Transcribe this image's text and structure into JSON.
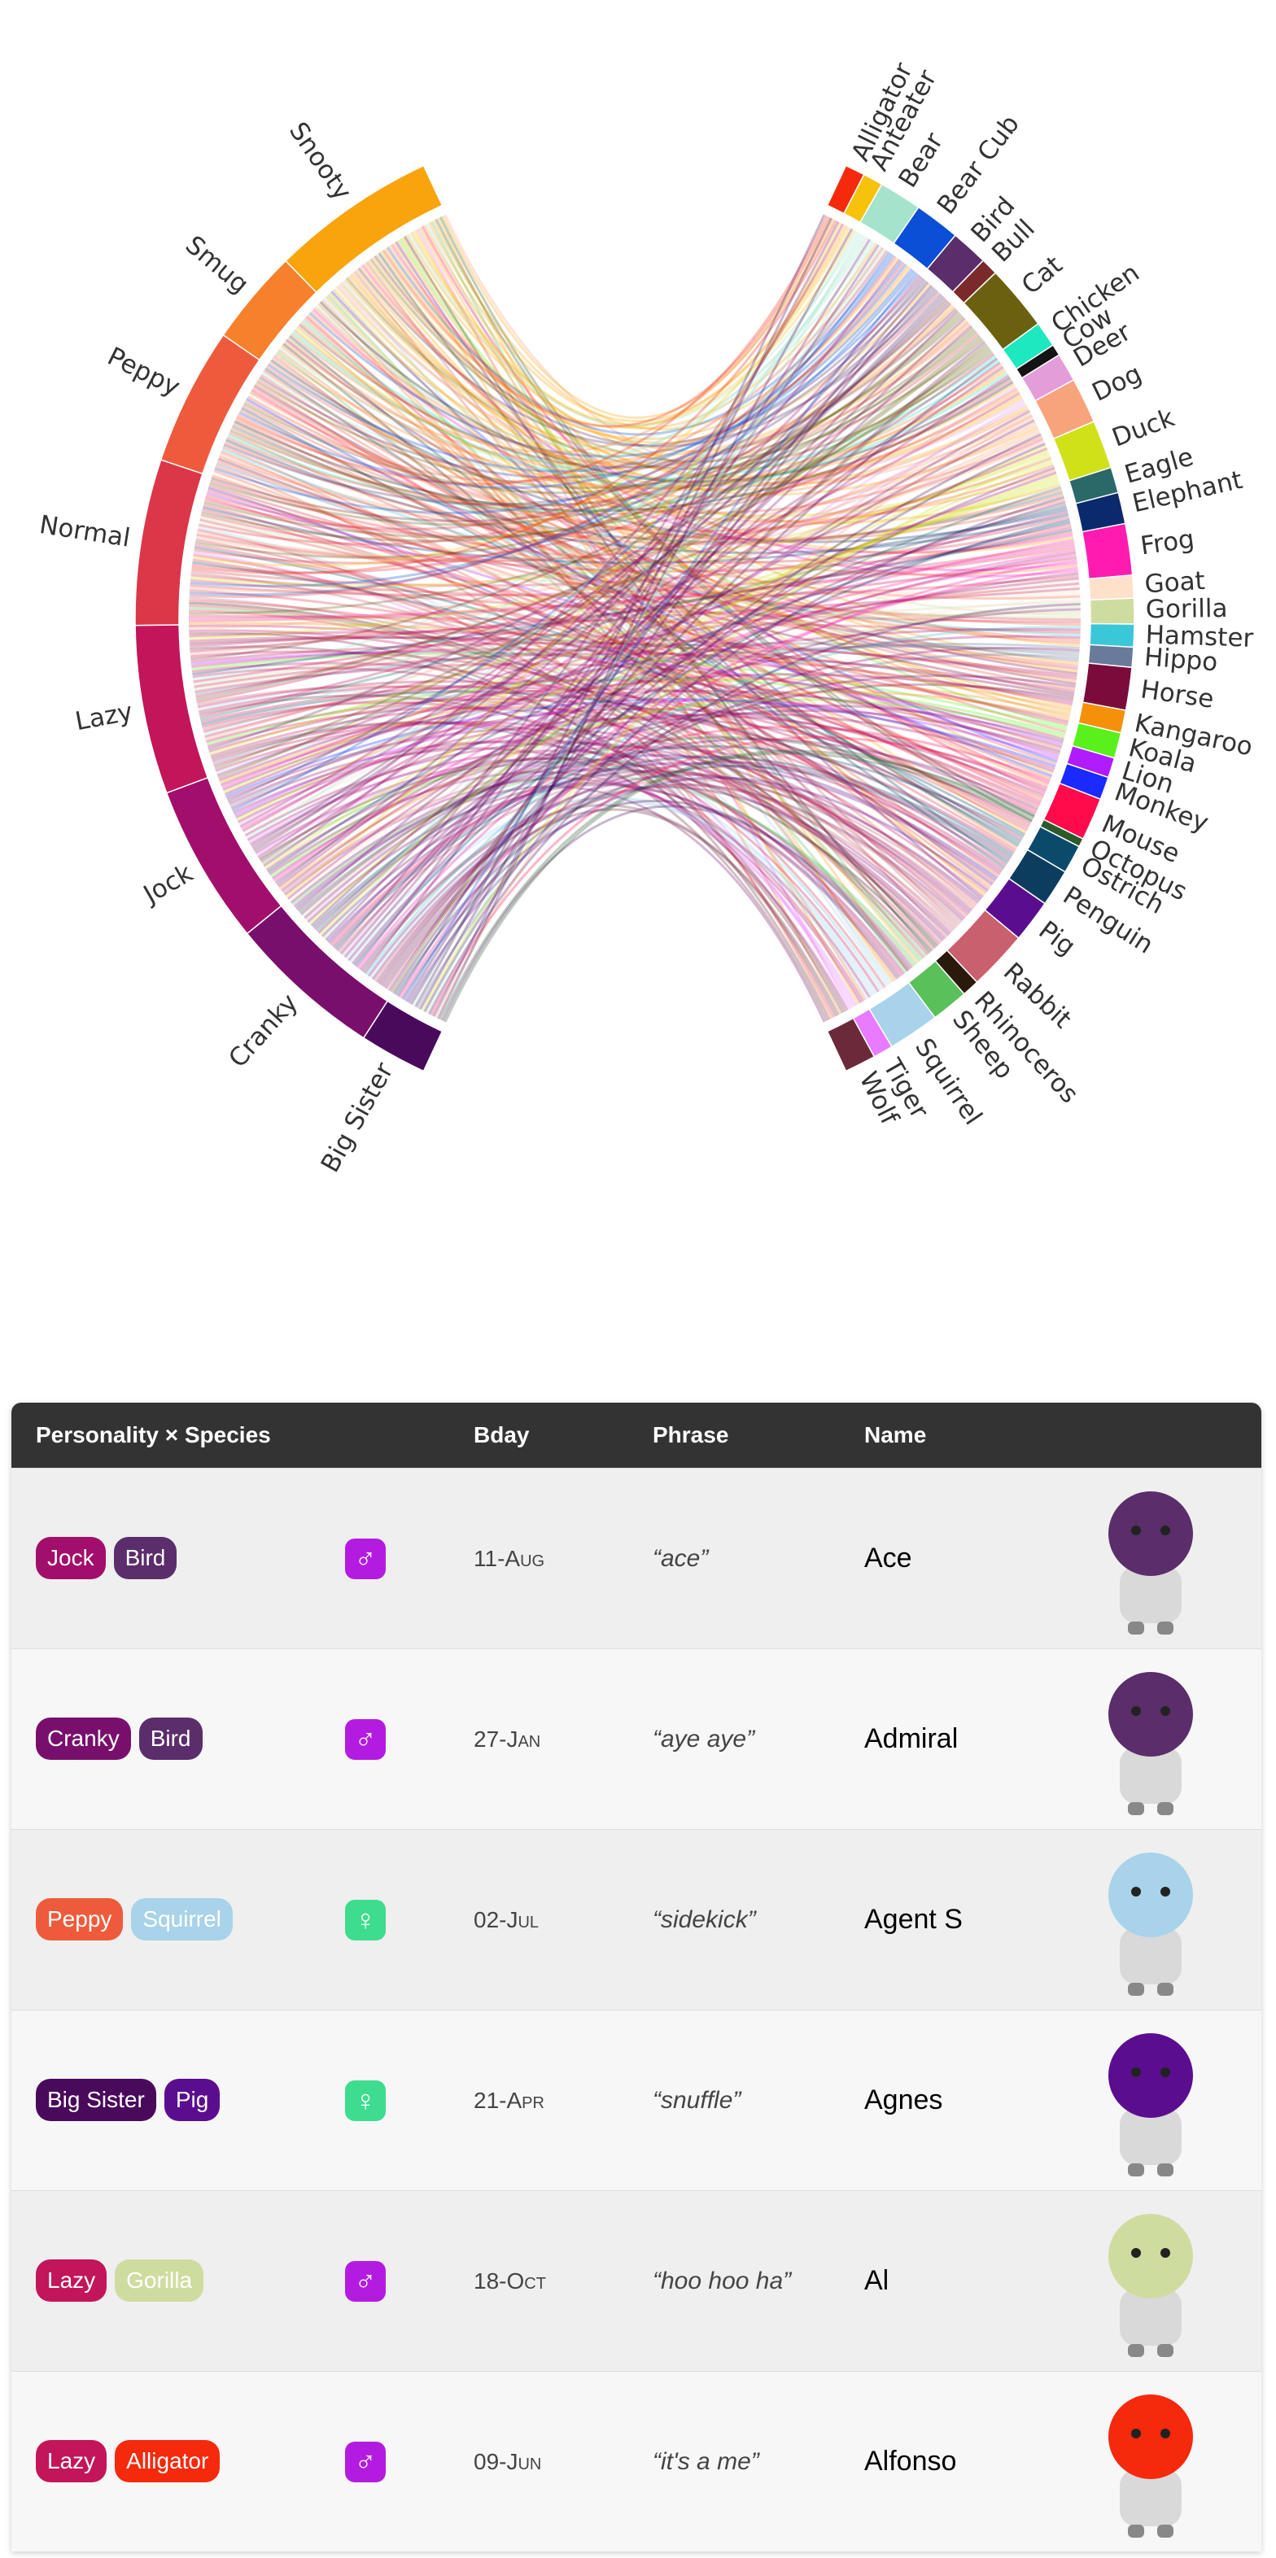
{
  "chord": {
    "left": {
      "groups": [
        {
          "name": "Snooty",
          "size": 59,
          "color": "#f9a40c"
        },
        {
          "name": "Smug",
          "size": 34,
          "color": "#f7802c"
        },
        {
          "name": "Peppy",
          "size": 49,
          "color": "#ee5b3c"
        },
        {
          "name": "Normal",
          "size": 59,
          "color": "#dc3649"
        },
        {
          "name": "Lazy",
          "size": 60,
          "color": "#c3155a"
        },
        {
          "name": "Jock",
          "size": 57,
          "color": "#a20e6b"
        },
        {
          "name": "Cranky",
          "size": 55,
          "color": "#790f6c"
        },
        {
          "name": "Big Sister",
          "size": 24,
          "color": "#4a0a5c"
        }
      ]
    },
    "right": {
      "groups": [
        {
          "name": "Alligator",
          "size": 7,
          "color": "#f5290b"
        },
        {
          "name": "Anteater",
          "size": 7,
          "color": "#f7c20c"
        },
        {
          "name": "Bear",
          "size": 15,
          "color": "#a6e3cc"
        },
        {
          "name": "Bear Cub",
          "size": 16,
          "color": "#0a4fd6"
        },
        {
          "name": "Bird",
          "size": 13,
          "color": "#5b2d6b"
        },
        {
          "name": "Bull",
          "size": 6,
          "color": "#7a2a2a"
        },
        {
          "name": "Cat",
          "size": 23,
          "color": "#6b6010"
        },
        {
          "name": "Chicken",
          "size": 9,
          "color": "#1ee8c0"
        },
        {
          "name": "Cow",
          "size": 4,
          "color": "#141414"
        },
        {
          "name": "Deer",
          "size": 10,
          "color": "#e39dd9"
        },
        {
          "name": "Dog",
          "size": 16,
          "color": "#f7a37c"
        },
        {
          "name": "Duck",
          "size": 17,
          "color": "#d0e11a"
        },
        {
          "name": "Eagle",
          "size": 9,
          "color": "#2b6868"
        },
        {
          "name": "Elephant",
          "size": 11,
          "color": "#0b2a6e"
        },
        {
          "name": "Frog",
          "size": 18,
          "color": "#ff1bb0"
        },
        {
          "name": "Goat",
          "size": 8,
          "color": "#ffe0c8"
        },
        {
          "name": "Gorilla",
          "size": 9,
          "color": "#cfdca0"
        },
        {
          "name": "Hamster",
          "size": 8,
          "color": "#3ac7d8"
        },
        {
          "name": "Hippo",
          "size": 7,
          "color": "#6a7a9a"
        },
        {
          "name": "Horse",
          "size": 15,
          "color": "#7a0b3b"
        },
        {
          "name": "Kangaroo",
          "size": 8,
          "color": "#f5900b"
        },
        {
          "name": "Koala",
          "size": 9,
          "color": "#5af01b"
        },
        {
          "name": "Lion",
          "size": 7,
          "color": "#b01bff"
        },
        {
          "name": "Monkey",
          "size": 8,
          "color": "#1b2bff"
        },
        {
          "name": "Mouse",
          "size": 15,
          "color": "#ff0b4b"
        },
        {
          "name": "Octopus",
          "size": 3,
          "color": "#2b5a2b"
        },
        {
          "name": "Ostrich",
          "size": 10,
          "color": "#0b4a6a"
        },
        {
          "name": "Penguin",
          "size": 13,
          "color": "#0d3d5e"
        },
        {
          "name": "Pig",
          "size": 15,
          "color": "#5b0d8f"
        },
        {
          "name": "Rabbit",
          "size": 21,
          "color": "#c8606e"
        },
        {
          "name": "Rhinoceros",
          "size": 6,
          "color": "#2b1a0b"
        },
        {
          "name": "Sheep",
          "size": 13,
          "color": "#5ac05a"
        },
        {
          "name": "Squirrel",
          "size": 18,
          "color": "#a8d3ea"
        },
        {
          "name": "Tiger",
          "size": 7,
          "color": "#e87bff"
        },
        {
          "name": "Wolf",
          "size": 11,
          "color": "#6a2a3a"
        }
      ]
    }
  },
  "table": {
    "headers": [
      "Personality × Species",
      "Bday",
      "Phrase",
      "Name"
    ],
    "rows": [
      {
        "personality": "Jock",
        "species": "Bird",
        "gender": "♂",
        "gender_color": "#b31ce0",
        "bday": "11-Aug",
        "phrase": "“ace”",
        "name": "Ace"
      },
      {
        "personality": "Cranky",
        "species": "Bird",
        "gender": "♂",
        "gender_color": "#b31ce0",
        "bday": "27-Jan",
        "phrase": "“aye aye”",
        "name": "Admiral"
      },
      {
        "personality": "Peppy",
        "species": "Squirrel",
        "gender": "♀",
        "gender_color": "#3ddc8e",
        "bday": "02-Jul",
        "phrase": "“sidekick”",
        "name": "Agent S"
      },
      {
        "personality": "Big Sister",
        "species": "Pig",
        "gender": "♀",
        "gender_color": "#3ddc8e",
        "bday": "21-Apr",
        "phrase": "“snuffle”",
        "name": "Agnes"
      },
      {
        "personality": "Lazy",
        "species": "Gorilla",
        "gender": "♂",
        "gender_color": "#b31ce0",
        "bday": "18-Oct",
        "phrase": "“hoo hoo ha”",
        "name": "Al"
      },
      {
        "personality": "Lazy",
        "species": "Alligator",
        "gender": "♂",
        "gender_color": "#b31ce0",
        "bday": "09-Jun",
        "phrase": "“it's a me”",
        "name": "Alfonso"
      }
    ]
  }
}
